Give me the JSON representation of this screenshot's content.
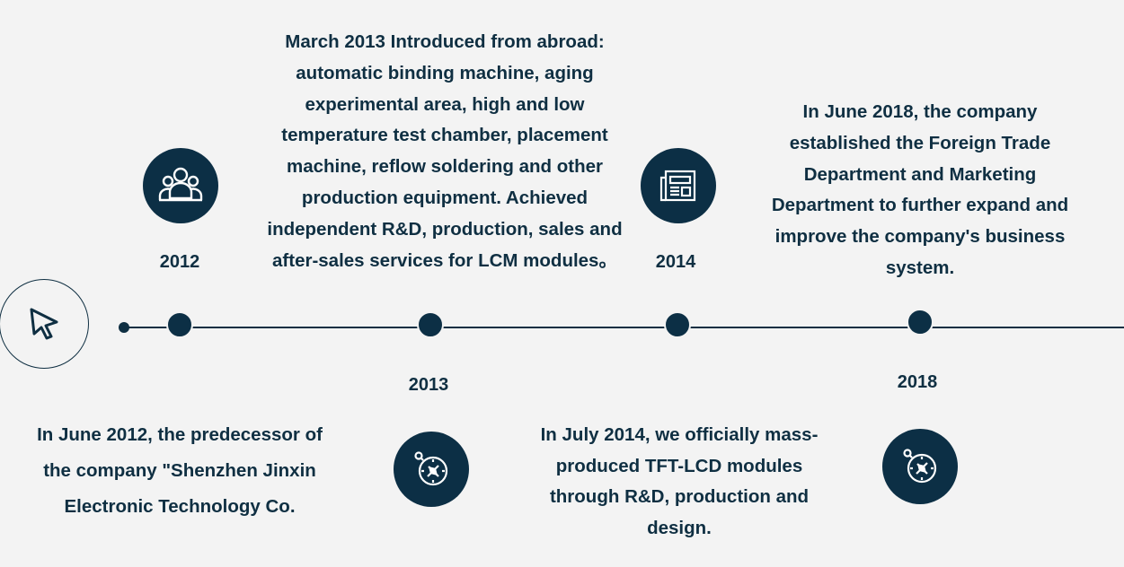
{
  "timeline": {
    "events": [
      {
        "year": "2012",
        "icon": "group-icon",
        "text": "In June 2012, the predecessor of the company \"Shenzhen Jinxin Electronic Technology Co."
      },
      {
        "year": "2013",
        "icon": "compass-icon",
        "text": "March 2013 Introduced from abroad: automatic binding machine, aging experimental area, high and low temperature test chamber, placement machine, reflow soldering and other production equipment. Achieved independent R&D, production, sales and after-sales services for LCM modules。"
      },
      {
        "year": "2014",
        "icon": "newspaper-icon",
        "text": "In July 2014, we officially mass-produced TFT-LCD modules through R&D, production and design."
      },
      {
        "year": "2018",
        "icon": "compass-icon",
        "text": "In June 2018, the company established the Foreign Trade Department and Marketing Department to further expand and improve the company's business system."
      }
    ]
  },
  "colors": {
    "background": "#f3f3f3",
    "accent": "#0c2f45",
    "text": "#0f2f42"
  }
}
